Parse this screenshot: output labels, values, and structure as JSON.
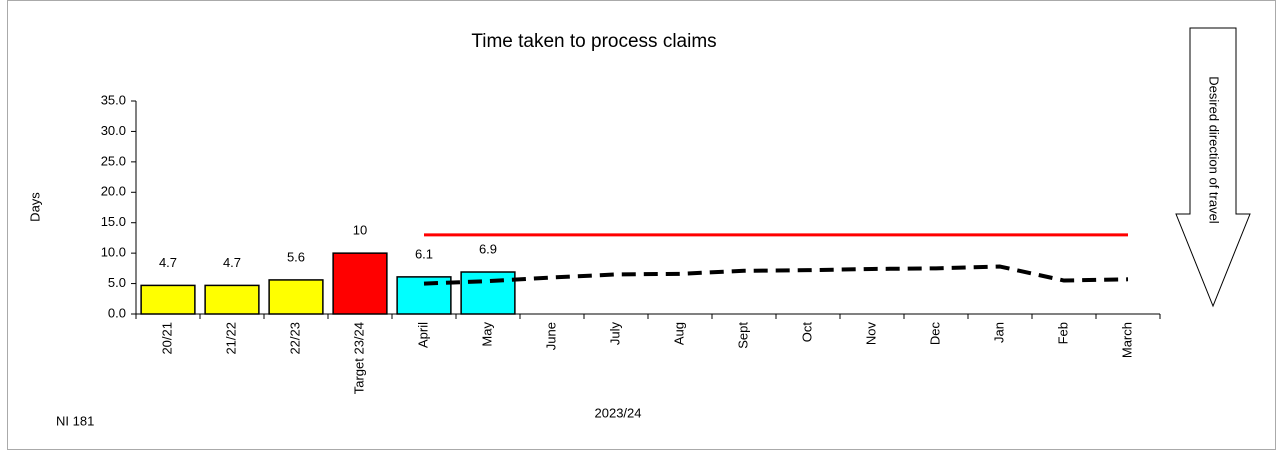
{
  "chart_data": {
    "type": "bar",
    "title": "Time taken to process claims",
    "y_label": "Days",
    "x_label": "2023/24",
    "footnote": "NI 181",
    "annotation": "Desired direction of travel",
    "categories": [
      "20/21",
      "21/22",
      "22/23",
      "Target 23/24",
      "April",
      "May",
      "June",
      "July",
      "Aug",
      "Sept",
      "Oct",
      "Nov",
      "Dec",
      "Jan",
      "Feb",
      "March"
    ],
    "values": [
      4.7,
      4.7,
      5.6,
      10,
      6.1,
      6.9,
      null,
      null,
      null,
      null,
      null,
      null,
      null,
      null,
      null,
      null
    ],
    "colors": [
      "#ffff00",
      "#ffff00",
      "#ffff00",
      "#ff0000",
      "#00ffff",
      "#00ffff",
      null,
      null,
      null,
      null,
      null,
      null,
      null,
      null,
      null,
      null
    ],
    "value_labels": [
      "4.7",
      "4.7",
      "5.6",
      "10",
      "6.1",
      "6.9",
      null,
      null,
      null,
      null,
      null,
      null,
      null,
      null,
      null,
      null
    ],
    "lines": [
      {
        "color": "#ff0000",
        "dashed": false,
        "values": [
          null,
          null,
          null,
          null,
          13,
          13,
          13,
          13,
          13,
          13,
          13,
          13,
          13,
          13,
          13,
          13
        ]
      },
      {
        "color": "#000000",
        "dashed": true,
        "values": [
          null,
          null,
          null,
          null,
          5.0,
          5.4,
          6.0,
          6.5,
          6.6,
          7.1,
          7.2,
          7.4,
          7.5,
          7.8,
          5.5,
          5.7
        ]
      }
    ],
    "ylim": [
      0,
      35
    ],
    "yticks": [
      {
        "value": 0,
        "label": "0.0"
      },
      {
        "value": 5,
        "label": "5.0"
      },
      {
        "value": 10,
        "label": "10.0"
      },
      {
        "value": 15,
        "label": "15.0"
      },
      {
        "value": 20,
        "label": "20.0"
      },
      {
        "value": 25,
        "label": "25.0"
      },
      {
        "value": 30,
        "label": "30.0"
      },
      {
        "value": 35,
        "label": "35.0"
      }
    ],
    "grid": false
  }
}
